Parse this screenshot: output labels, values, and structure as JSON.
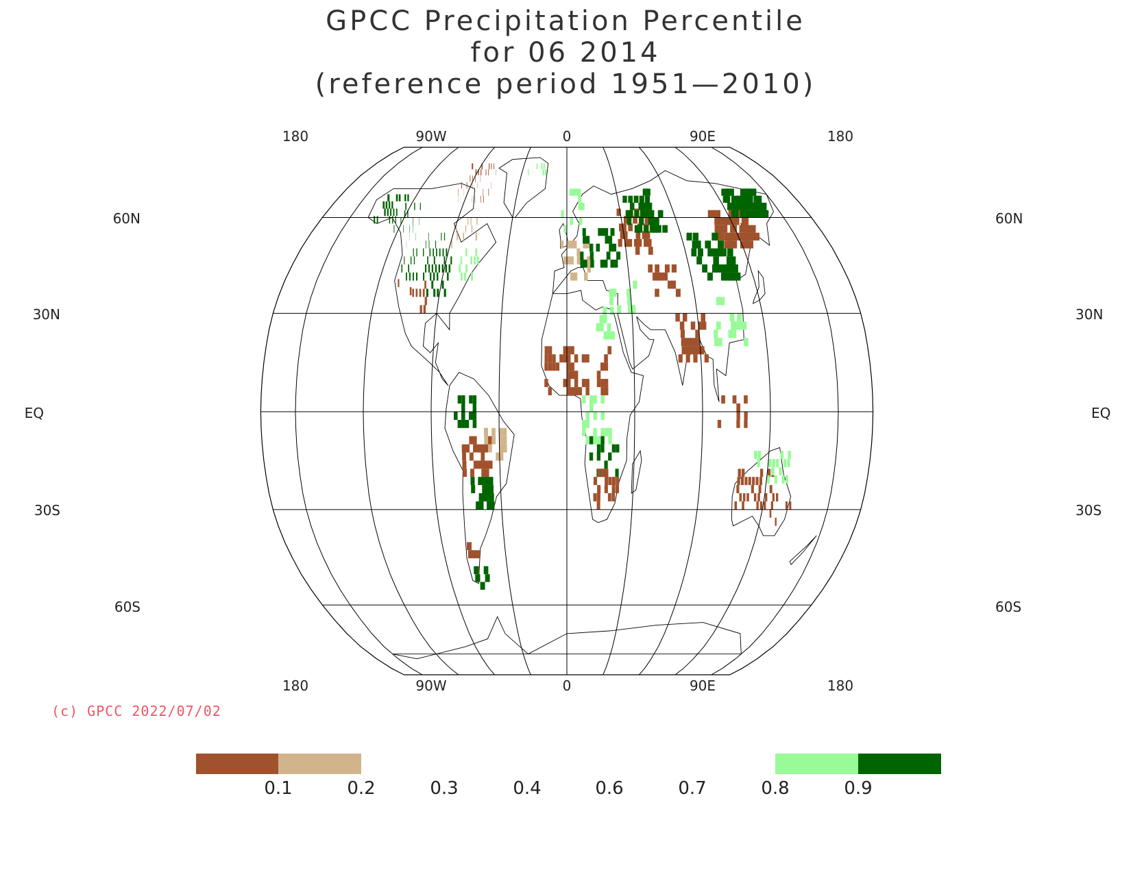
{
  "title": {
    "line1": "GPCC Precipitation Percentile",
    "line2": "for 06 2014",
    "line3": "(reference period 1951—2010)"
  },
  "map": {
    "projection": "Robinson",
    "top_longitude_labels": [
      "180",
      "90W",
      "0",
      "90E",
      "180"
    ],
    "bottom_longitude_labels": [
      "180",
      "90W",
      "0",
      "90E",
      "180"
    ],
    "latitude_labels": [
      {
        "left": "60N",
        "right": "60N",
        "lat": 60
      },
      {
        "left": "30N",
        "right": "30N",
        "lat": 30
      },
      {
        "left": "EQ",
        "right": "EQ",
        "lat": 0
      },
      {
        "left": "30S",
        "right": "30S",
        "lat": -30
      },
      {
        "left": "60S",
        "right": "60S",
        "lat": -60
      }
    ]
  },
  "copyright": "(c) GPCC 2022/07/02",
  "legend": {
    "swatches": [
      {
        "range": "< 0.1",
        "color": "#a0522d"
      },
      {
        "range": "0.1 - 0.2",
        "color": "#d2b48c"
      },
      {
        "range": "0.8 - 0.9",
        "color": "#98fb98"
      },
      {
        "range": "> 0.9",
        "color": "#006400"
      }
    ],
    "tick_labels": [
      "0.1",
      "0.2",
      "0.3",
      "0.4",
      "0.6",
      "0.7",
      "0.8",
      "0.9"
    ]
  },
  "colors": {
    "very_dry": "#a0522d",
    "dry": "#d2b48c",
    "wet": "#98fb98",
    "very_wet": "#006400"
  }
}
